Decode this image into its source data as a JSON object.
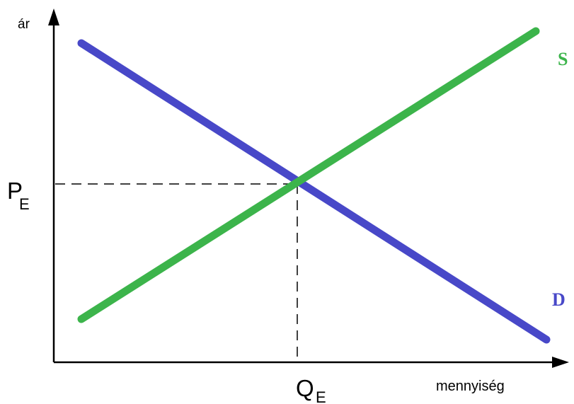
{
  "axes": {
    "y_label": "ár",
    "x_label": "mennyiség"
  },
  "equilibrium": {
    "price_label": {
      "main": "P",
      "subscript": "E"
    },
    "quantity_label": {
      "main": "Q",
      "subscript": "E"
    }
  },
  "curves": {
    "supply": {
      "label": "S",
      "color": "#3cb44b"
    },
    "demand": {
      "label": "D",
      "color": "#4848c8"
    }
  },
  "colors": {
    "axis": "#000000",
    "guide": "#000000",
    "background": "#ffffff"
  }
}
